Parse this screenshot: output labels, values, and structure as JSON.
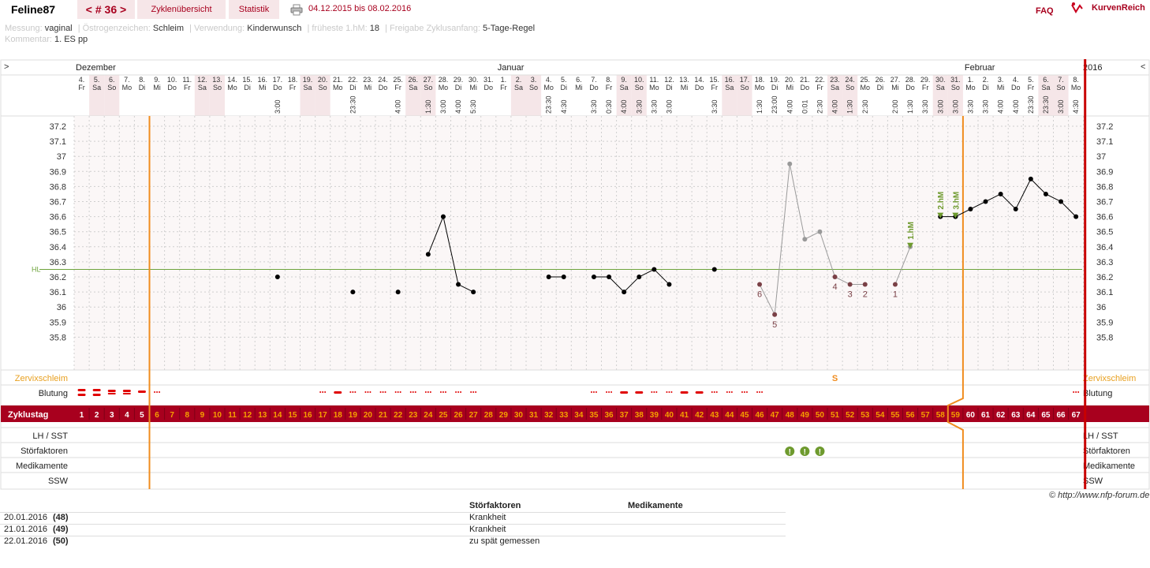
{
  "header": {
    "username": "Feline87",
    "cycle_nav": "< # 36 >",
    "tab_overview": "Zyklenübersicht",
    "tab_stats": "Statistik",
    "date_range": "04.12.2015 bis 08.02.2016",
    "faq": "FAQ",
    "logo_text": "KurvenReich"
  },
  "meta": {
    "messung_label": "Messung:",
    "messung_value": "vaginal",
    "oestrogen_label": "Östrogenzeichen:",
    "oestrogen_value": "Schleim",
    "verwendung_label": "Verwendung:",
    "verwendung_value": "Kinderwunsch",
    "hm_label": "früheste 1.hM:",
    "hm_value": "18",
    "freigabe_label": "Freigabe Zyklusanfang:",
    "freigabe_value": "5-Tage-Regel",
    "kommentar_label": "Kommentar:",
    "kommentar_value": "1. ES pp"
  },
  "chart_data": {
    "type": "line",
    "title": "",
    "year_label": "2016",
    "months": [
      {
        "name": "Dezember",
        "start_day": 1
      },
      {
        "name": "Januar",
        "start_day": 29
      },
      {
        "name": "Februar",
        "start_day": 60
      }
    ],
    "dates": [
      "4.",
      "5.",
      "6.",
      "7.",
      "8.",
      "9.",
      "10.",
      "11.",
      "12.",
      "13.",
      "14.",
      "15.",
      "16.",
      "17.",
      "18.",
      "19.",
      "20.",
      "21.",
      "22.",
      "23.",
      "24.",
      "25.",
      "26.",
      "27.",
      "28.",
      "29.",
      "30.",
      "31.",
      "1.",
      "2.",
      "3.",
      "4.",
      "5.",
      "6.",
      "7.",
      "8.",
      "9.",
      "10.",
      "11.",
      "12.",
      "13.",
      "14.",
      "15.",
      "16.",
      "17.",
      "18.",
      "19.",
      "20.",
      "21.",
      "22.",
      "23.",
      "24.",
      "25.",
      "26.",
      "27.",
      "28.",
      "29.",
      "30.",
      "31.",
      "1.",
      "2.",
      "3.",
      "4.",
      "5.",
      "6.",
      "7.",
      "8."
    ],
    "weekdays": [
      "Fr",
      "Sa",
      "So",
      "Mo",
      "Di",
      "Mi",
      "Do",
      "Fr",
      "Sa",
      "So",
      "Mo",
      "Di",
      "Mi",
      "Do",
      "Fr",
      "Sa",
      "So",
      "Mo",
      "Di",
      "Mi",
      "Do",
      "Fr",
      "Sa",
      "So",
      "Mo",
      "Di",
      "Mi",
      "Do",
      "Fr",
      "Sa",
      "So",
      "Mo",
      "Di",
      "Mi",
      "Do",
      "Fr",
      "Sa",
      "So",
      "Mo",
      "Di",
      "Mi",
      "Do",
      "Fr",
      "Sa",
      "So",
      "Mo",
      "Di",
      "Mi",
      "Do",
      "Fr",
      "Sa",
      "So",
      "Mo",
      "Di",
      "Mi",
      "Do",
      "Fr",
      "Sa",
      "So",
      "Mo",
      "Di",
      "Mi",
      "Do",
      "Fr",
      "Sa",
      "So",
      "Mo"
    ],
    "times": [
      "",
      "",
      "",
      "",
      "",
      "",
      "",
      "",
      "",
      "",
      "",
      "",
      "",
      "3:00",
      "",
      "",
      "",
      "",
      "23:30",
      "",
      "",
      "4:00",
      "",
      "1:30",
      "3:00",
      "4:00",
      "5:30",
      "",
      "",
      "",
      "",
      "23:30",
      "4:30",
      "",
      "3:30",
      "0:30",
      "4:00",
      "3:30",
      "3:30",
      "3:00",
      "",
      "",
      "3:30",
      "",
      "",
      "1:30",
      "23:00",
      "4:00",
      "0:01",
      "2:30",
      "4:00",
      "1:30",
      "2:30",
      "",
      "2:00",
      "1:30",
      "3:30",
      "3:00",
      "3:00",
      "3:30",
      "3:30",
      "4:00",
      "4:00",
      "23:30",
      "23:30",
      "3:00",
      "4:30"
    ],
    "y_ticks": [
      37.2,
      37.1,
      37.0,
      36.9,
      36.8,
      36.7,
      36.6,
      36.5,
      36.4,
      36.3,
      36.2,
      36.1,
      36.0,
      35.9,
      35.8
    ],
    "ylim": [
      35.75,
      37.25
    ],
    "hl_label": "HL",
    "hl_value": 36.25,
    "segments": [
      {
        "style": "main",
        "points": [
          [
            14,
            36.2
          ]
        ]
      },
      {
        "style": "main",
        "points": [
          [
            19,
            36.1
          ]
        ]
      },
      {
        "style": "main",
        "points": [
          [
            22,
            36.1
          ]
        ]
      },
      {
        "style": "main",
        "points": [
          [
            24,
            36.35
          ],
          [
            25,
            36.6
          ],
          [
            26,
            36.15
          ],
          [
            27,
            36.1
          ]
        ]
      },
      {
        "style": "main",
        "points": [
          [
            32,
            36.2
          ],
          [
            33,
            36.2
          ]
        ]
      },
      {
        "style": "main",
        "points": [
          [
            35,
            36.2
          ],
          [
            36,
            36.2
          ],
          [
            37,
            36.1
          ],
          [
            38,
            36.2
          ],
          [
            39,
            36.25
          ],
          [
            40,
            36.15
          ]
        ]
      },
      {
        "style": "main",
        "points": [
          [
            43,
            36.25
          ]
        ]
      },
      {
        "style": "grey",
        "points": [
          [
            46,
            36.15
          ],
          [
            47,
            35.95
          ],
          [
            48,
            36.95
          ],
          [
            49,
            36.45
          ],
          [
            50,
            36.5
          ],
          [
            51,
            36.2
          ],
          [
            52,
            36.15
          ],
          [
            53,
            36.15
          ]
        ]
      },
      {
        "style": "grey",
        "points": [
          [
            55,
            36.15
          ],
          [
            56,
            36.4
          ]
        ]
      },
      {
        "style": "main",
        "points": [
          [
            58,
            36.6
          ],
          [
            59,
            36.6
          ],
          [
            60,
            36.65
          ],
          [
            61,
            36.7
          ],
          [
            62,
            36.75
          ],
          [
            63,
            36.65
          ],
          [
            64,
            36.85
          ],
          [
            65,
            36.75
          ],
          [
            66,
            36.7
          ],
          [
            67,
            36.6
          ]
        ]
      }
    ],
    "low_labels": [
      {
        "day": 46,
        "label": "6"
      },
      {
        "day": 47,
        "label": "5"
      },
      {
        "day": 51,
        "label": "4"
      },
      {
        "day": 52,
        "label": "3"
      },
      {
        "day": 53,
        "label": "2"
      },
      {
        "day": 55,
        "label": "1"
      }
    ],
    "hm_markers": [
      {
        "day": 56,
        "label": "1.hM"
      },
      {
        "day": 58,
        "label": "2.hM"
      },
      {
        "day": 59,
        "label": "3.hM"
      }
    ],
    "vlines": [
      6,
      59
    ],
    "cervix": [
      {
        "day": 51,
        "value": "S"
      }
    ],
    "bleeding_heavy": [
      1,
      2
    ],
    "bleeding_medium": [
      3,
      4
    ],
    "bleeding_light": [
      5
    ],
    "spotting": [
      6,
      17,
      19,
      20,
      21,
      22,
      23,
      24,
      25,
      26,
      27,
      35,
      36,
      39,
      40,
      43,
      44,
      45,
      46,
      67
    ],
    "bleeding_dash": [
      18,
      37,
      38,
      41,
      42
    ],
    "disturbance_days": [
      48,
      49,
      50
    ],
    "row_labels": {
      "cervix": "Zervixschleim",
      "bleeding": "Blutung",
      "cycle": "Zyklustag",
      "lh": "LH / SST",
      "disturb": "Störfaktoren",
      "meds": "Medikamente",
      "ssw": "SSW"
    }
  },
  "copyright": "© http://www.nfp-forum.de",
  "notes": {
    "col_disturb": "Störfaktoren",
    "col_meds": "Medikamente",
    "rows": [
      {
        "date": "20.01.2016",
        "day": "(48)",
        "disturb": "Krankheit"
      },
      {
        "date": "21.01.2016",
        "day": "(49)",
        "disturb": "Krankheit"
      },
      {
        "date": "22.01.2016",
        "day": "(50)",
        "disturb": "zu spät gemessen"
      }
    ]
  }
}
